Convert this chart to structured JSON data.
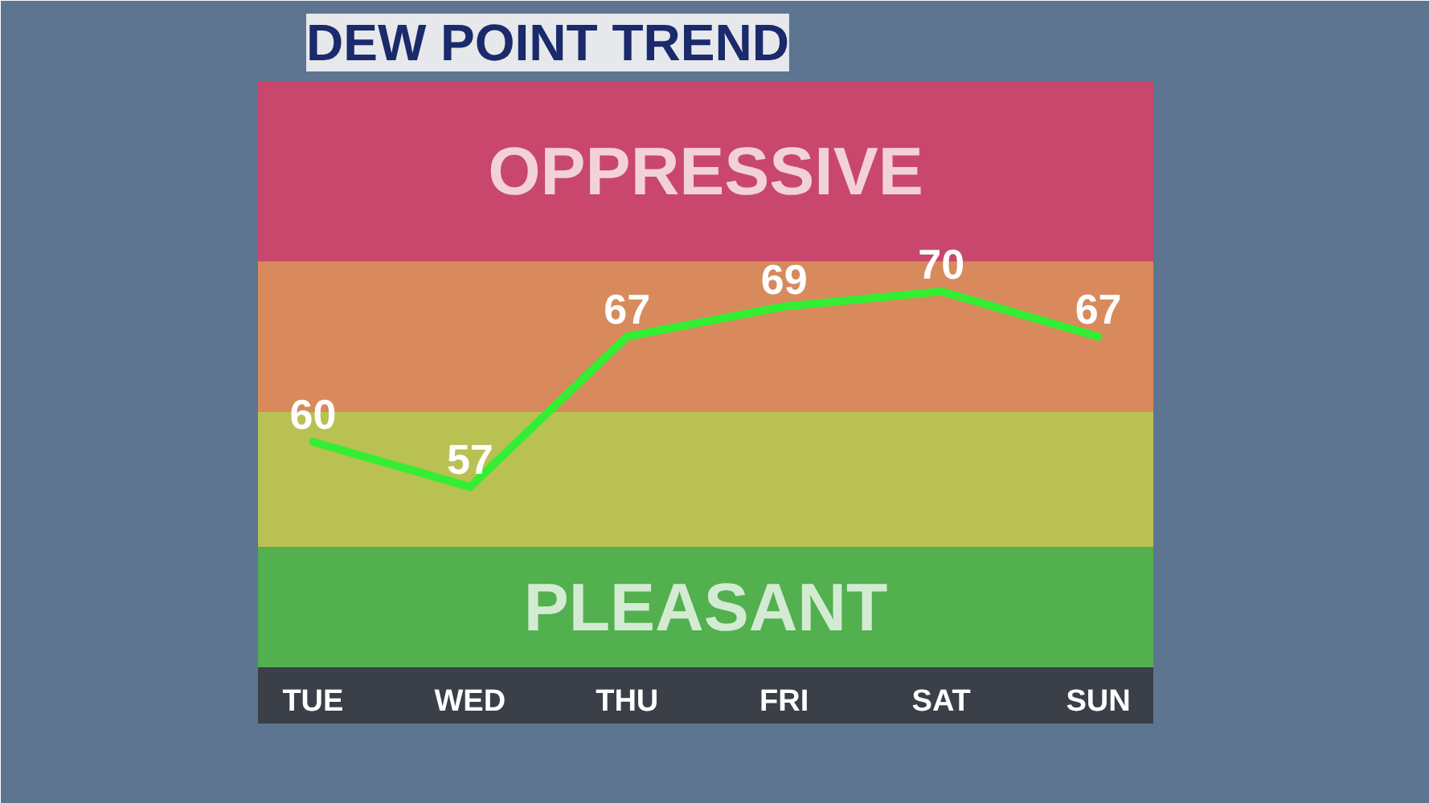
{
  "chart_data": {
    "type": "line",
    "title": "DEW POINT TREND",
    "categories": [
      "TUE",
      "WED",
      "THU",
      "FRI",
      "SAT",
      "SUN"
    ],
    "values": [
      60,
      57,
      67,
      69,
      70,
      67
    ],
    "color": "#33ee33",
    "data_labels": true,
    "ylim": [
      45,
      84
    ],
    "grid": false,
    "marker": "none",
    "line_style": "solid",
    "tick_labels": "x",
    "bands": [
      {
        "axis": "y",
        "from": 72,
        "to": 84,
        "color": "#c9476c",
        "label": "OPPRESSIVE"
      },
      {
        "axis": "y",
        "from": 62,
        "to": 72,
        "color": "#d88a5c",
        "label": null
      },
      {
        "axis": "y",
        "from": 53,
        "to": 62,
        "color": "#b9c153",
        "label": null
      },
      {
        "axis": "y",
        "from": 45,
        "to": 53,
        "color": "#52b04e",
        "label": "PLEASANT"
      }
    ]
  }
}
